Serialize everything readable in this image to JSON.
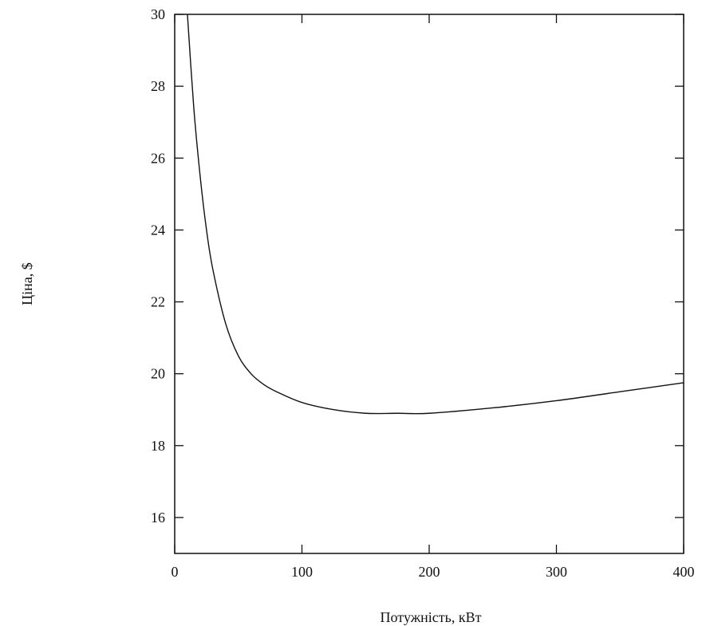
{
  "chart_data": {
    "type": "line",
    "title": "",
    "xlabel": "Потужність, кВт",
    "ylabel": "Ціна, $",
    "xlim": [
      0,
      400
    ],
    "ylim": [
      15,
      30
    ],
    "grid": false,
    "legend": "none",
    "xticks": [
      "0",
      "100",
      "200",
      "300",
      "400"
    ],
    "yticks": [
      "16",
      "18",
      "20",
      "22",
      "24",
      "26",
      "28",
      "30"
    ],
    "line_color": "#111111",
    "series": [
      {
        "x": [
          10,
          15,
          20,
          25,
          30,
          40,
          50,
          60,
          70,
          80,
          100,
          125,
          150,
          175,
          200,
          250,
          300,
          350,
          400
        ],
        "values": [
          30.0,
          27.4,
          25.5,
          24.0,
          22.9,
          21.4,
          20.5,
          20.0,
          19.7,
          19.5,
          19.2,
          19.0,
          18.9,
          18.9,
          18.9,
          19.05,
          19.25,
          19.5,
          19.75
        ]
      }
    ]
  }
}
